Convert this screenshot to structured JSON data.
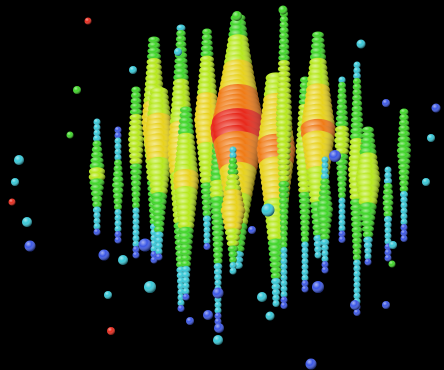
{
  "scene": {
    "subject": "particle-detector-event-display",
    "background_color": "#000000"
  },
  "palette": {
    "red": "#e8281a",
    "orange": "#f07a14",
    "yellow": "#e8d21a",
    "yellow_green": "#b6e81a",
    "green": "#3ed626",
    "cyan": "#36c8d8",
    "blue": "#3a56e6"
  },
  "icons": [
    "detector-sensor-sphere"
  ]
}
